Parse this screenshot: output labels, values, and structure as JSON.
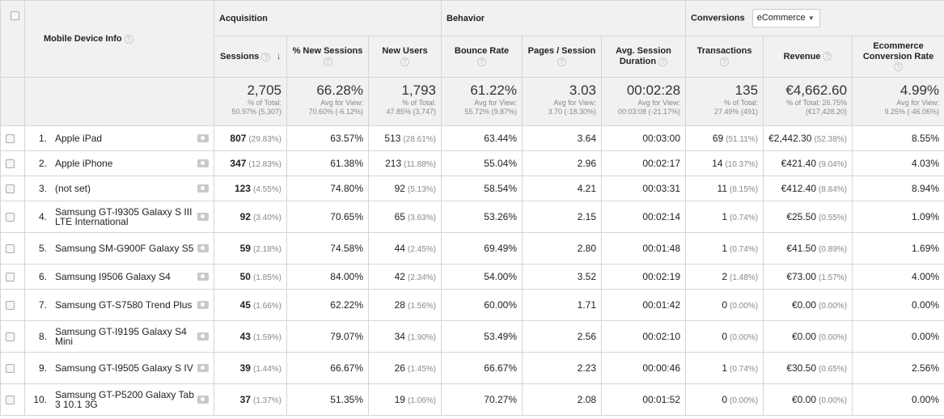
{
  "header": {
    "dimension_label": "Mobile Device Info",
    "groups": {
      "acquisition": "Acquisition",
      "behavior": "Behavior",
      "conversions": "Conversions",
      "conversions_select": "eCommerce"
    },
    "columns": {
      "sessions": "Sessions",
      "new_sessions": "% New Sessions",
      "new_users": "New Users",
      "bounce_rate": "Bounce Rate",
      "pages_session": "Pages / Session",
      "avg_duration_1": "Avg. Session",
      "avg_duration_2": "Duration",
      "transactions": "Transactions",
      "revenue": "Revenue",
      "conv_rate_1": "Ecommerce",
      "conv_rate_2": "Conversion Rate"
    }
  },
  "totals": {
    "sessions": {
      "value": "2,705",
      "sub1": "% of Total:",
      "sub2": "50.97% (5,307)"
    },
    "new_sessions": {
      "value": "66.28%",
      "sub1": "Avg for View:",
      "sub2": "70.60% (-6.12%)"
    },
    "new_users": {
      "value": "1,793",
      "sub1": "% of Total:",
      "sub2": "47.85% (3,747)"
    },
    "bounce_rate": {
      "value": "61.22%",
      "sub1": "Avg for View:",
      "sub2": "55.72% (9.87%)"
    },
    "pages_session": {
      "value": "3.03",
      "sub1": "Avg for View:",
      "sub2": "3.70 (-18.30%)"
    },
    "avg_duration": {
      "value": "00:02:28",
      "sub1": "Avg for View:",
      "sub2": "00:03:08 (-21.17%)"
    },
    "transactions": {
      "value": "135",
      "sub1": "% of Total:",
      "sub2": "27.49% (491)"
    },
    "revenue": {
      "value": "€4,662.60",
      "sub1": "% of Total: 26.75%",
      "sub2": "(€17,428.20)"
    },
    "conv_rate": {
      "value": "4.99%",
      "sub1": "Avg for View:",
      "sub2": "9.25% (-46.06%)"
    }
  },
  "rows": [
    {
      "num": "1.",
      "name": "Apple iPad",
      "sessions": "807",
      "sessions_pct": "(29.83%)",
      "new_sessions": "63.57%",
      "new_users": "513",
      "new_users_pct": "(28.61%)",
      "bounce_rate": "63.44%",
      "pages_session": "3.64",
      "avg_duration": "00:03:00",
      "transactions": "69",
      "transactions_pct": "(51.11%)",
      "revenue": "€2,442.30",
      "revenue_pct": "(52.38%)",
      "conv_rate": "8.55%"
    },
    {
      "num": "2.",
      "name": "Apple iPhone",
      "sessions": "347",
      "sessions_pct": "(12.83%)",
      "new_sessions": "61.38%",
      "new_users": "213",
      "new_users_pct": "(11.88%)",
      "bounce_rate": "55.04%",
      "pages_session": "2.96",
      "avg_duration": "00:02:17",
      "transactions": "14",
      "transactions_pct": "(10.37%)",
      "revenue": "€421.40",
      "revenue_pct": "(9.04%)",
      "conv_rate": "4.03%"
    },
    {
      "num": "3.",
      "name": "(not set)",
      "sessions": "123",
      "sessions_pct": "(4.55%)",
      "new_sessions": "74.80%",
      "new_users": "92",
      "new_users_pct": "(5.13%)",
      "bounce_rate": "58.54%",
      "pages_session": "4.21",
      "avg_duration": "00:03:31",
      "transactions": "11",
      "transactions_pct": "(8.15%)",
      "revenue": "€412.40",
      "revenue_pct": "(8.84%)",
      "conv_rate": "8.94%"
    },
    {
      "num": "4.",
      "name": "Samsung GT-I9305 Galaxy S III LTE International",
      "sessions": "92",
      "sessions_pct": "(3.40%)",
      "new_sessions": "70.65%",
      "new_users": "65",
      "new_users_pct": "(3.63%)",
      "bounce_rate": "53.26%",
      "pages_session": "2.15",
      "avg_duration": "00:02:14",
      "transactions": "1",
      "transactions_pct": "(0.74%)",
      "revenue": "€25.50",
      "revenue_pct": "(0.55%)",
      "conv_rate": "1.09%"
    },
    {
      "num": "5.",
      "name": "Samsung SM-G900F Galaxy S5",
      "sessions": "59",
      "sessions_pct": "(2.18%)",
      "new_sessions": "74.58%",
      "new_users": "44",
      "new_users_pct": "(2.45%)",
      "bounce_rate": "69.49%",
      "pages_session": "2.80",
      "avg_duration": "00:01:48",
      "transactions": "1",
      "transactions_pct": "(0.74%)",
      "revenue": "€41.50",
      "revenue_pct": "(0.89%)",
      "conv_rate": "1.69%"
    },
    {
      "num": "6.",
      "name": "Samsung I9506 Galaxy S4",
      "sessions": "50",
      "sessions_pct": "(1.85%)",
      "new_sessions": "84.00%",
      "new_users": "42",
      "new_users_pct": "(2.34%)",
      "bounce_rate": "54.00%",
      "pages_session": "3.52",
      "avg_duration": "00:02:19",
      "transactions": "2",
      "transactions_pct": "(1.48%)",
      "revenue": "€73.00",
      "revenue_pct": "(1.57%)",
      "conv_rate": "4.00%"
    },
    {
      "num": "7.",
      "name": "Samsung GT-S7580 Trend Plus",
      "sessions": "45",
      "sessions_pct": "(1.66%)",
      "new_sessions": "62.22%",
      "new_users": "28",
      "new_users_pct": "(1.56%)",
      "bounce_rate": "60.00%",
      "pages_session": "1.71",
      "avg_duration": "00:01:42",
      "transactions": "0",
      "transactions_pct": "(0.00%)",
      "revenue": "€0.00",
      "revenue_pct": "(0.00%)",
      "conv_rate": "0.00%"
    },
    {
      "num": "8.",
      "name": "Samsung GT-I9195 Galaxy S4 Mini",
      "sessions": "43",
      "sessions_pct": "(1.59%)",
      "new_sessions": "79.07%",
      "new_users": "34",
      "new_users_pct": "(1.90%)",
      "bounce_rate": "53.49%",
      "pages_session": "2.56",
      "avg_duration": "00:02:10",
      "transactions": "0",
      "transactions_pct": "(0.00%)",
      "revenue": "€0.00",
      "revenue_pct": "(0.00%)",
      "conv_rate": "0.00%"
    },
    {
      "num": "9.",
      "name": "Samsung GT-I9505 Galaxy S IV",
      "sessions": "39",
      "sessions_pct": "(1.44%)",
      "new_sessions": "66.67%",
      "new_users": "26",
      "new_users_pct": "(1.45%)",
      "bounce_rate": "66.67%",
      "pages_session": "2.23",
      "avg_duration": "00:00:46",
      "transactions": "1",
      "transactions_pct": "(0.74%)",
      "revenue": "€30.50",
      "revenue_pct": "(0.65%)",
      "conv_rate": "2.56%"
    },
    {
      "num": "10.",
      "name": "Samsung GT-P5200 Galaxy Tab 3 10.1 3G",
      "sessions": "37",
      "sessions_pct": "(1.37%)",
      "new_sessions": "51.35%",
      "new_users": "19",
      "new_users_pct": "(1.06%)",
      "bounce_rate": "70.27%",
      "pages_session": "2.08",
      "avg_duration": "00:01:52",
      "transactions": "0",
      "transactions_pct": "(0.00%)",
      "revenue": "€0.00",
      "revenue_pct": "(0.00%)",
      "conv_rate": "0.00%"
    }
  ]
}
